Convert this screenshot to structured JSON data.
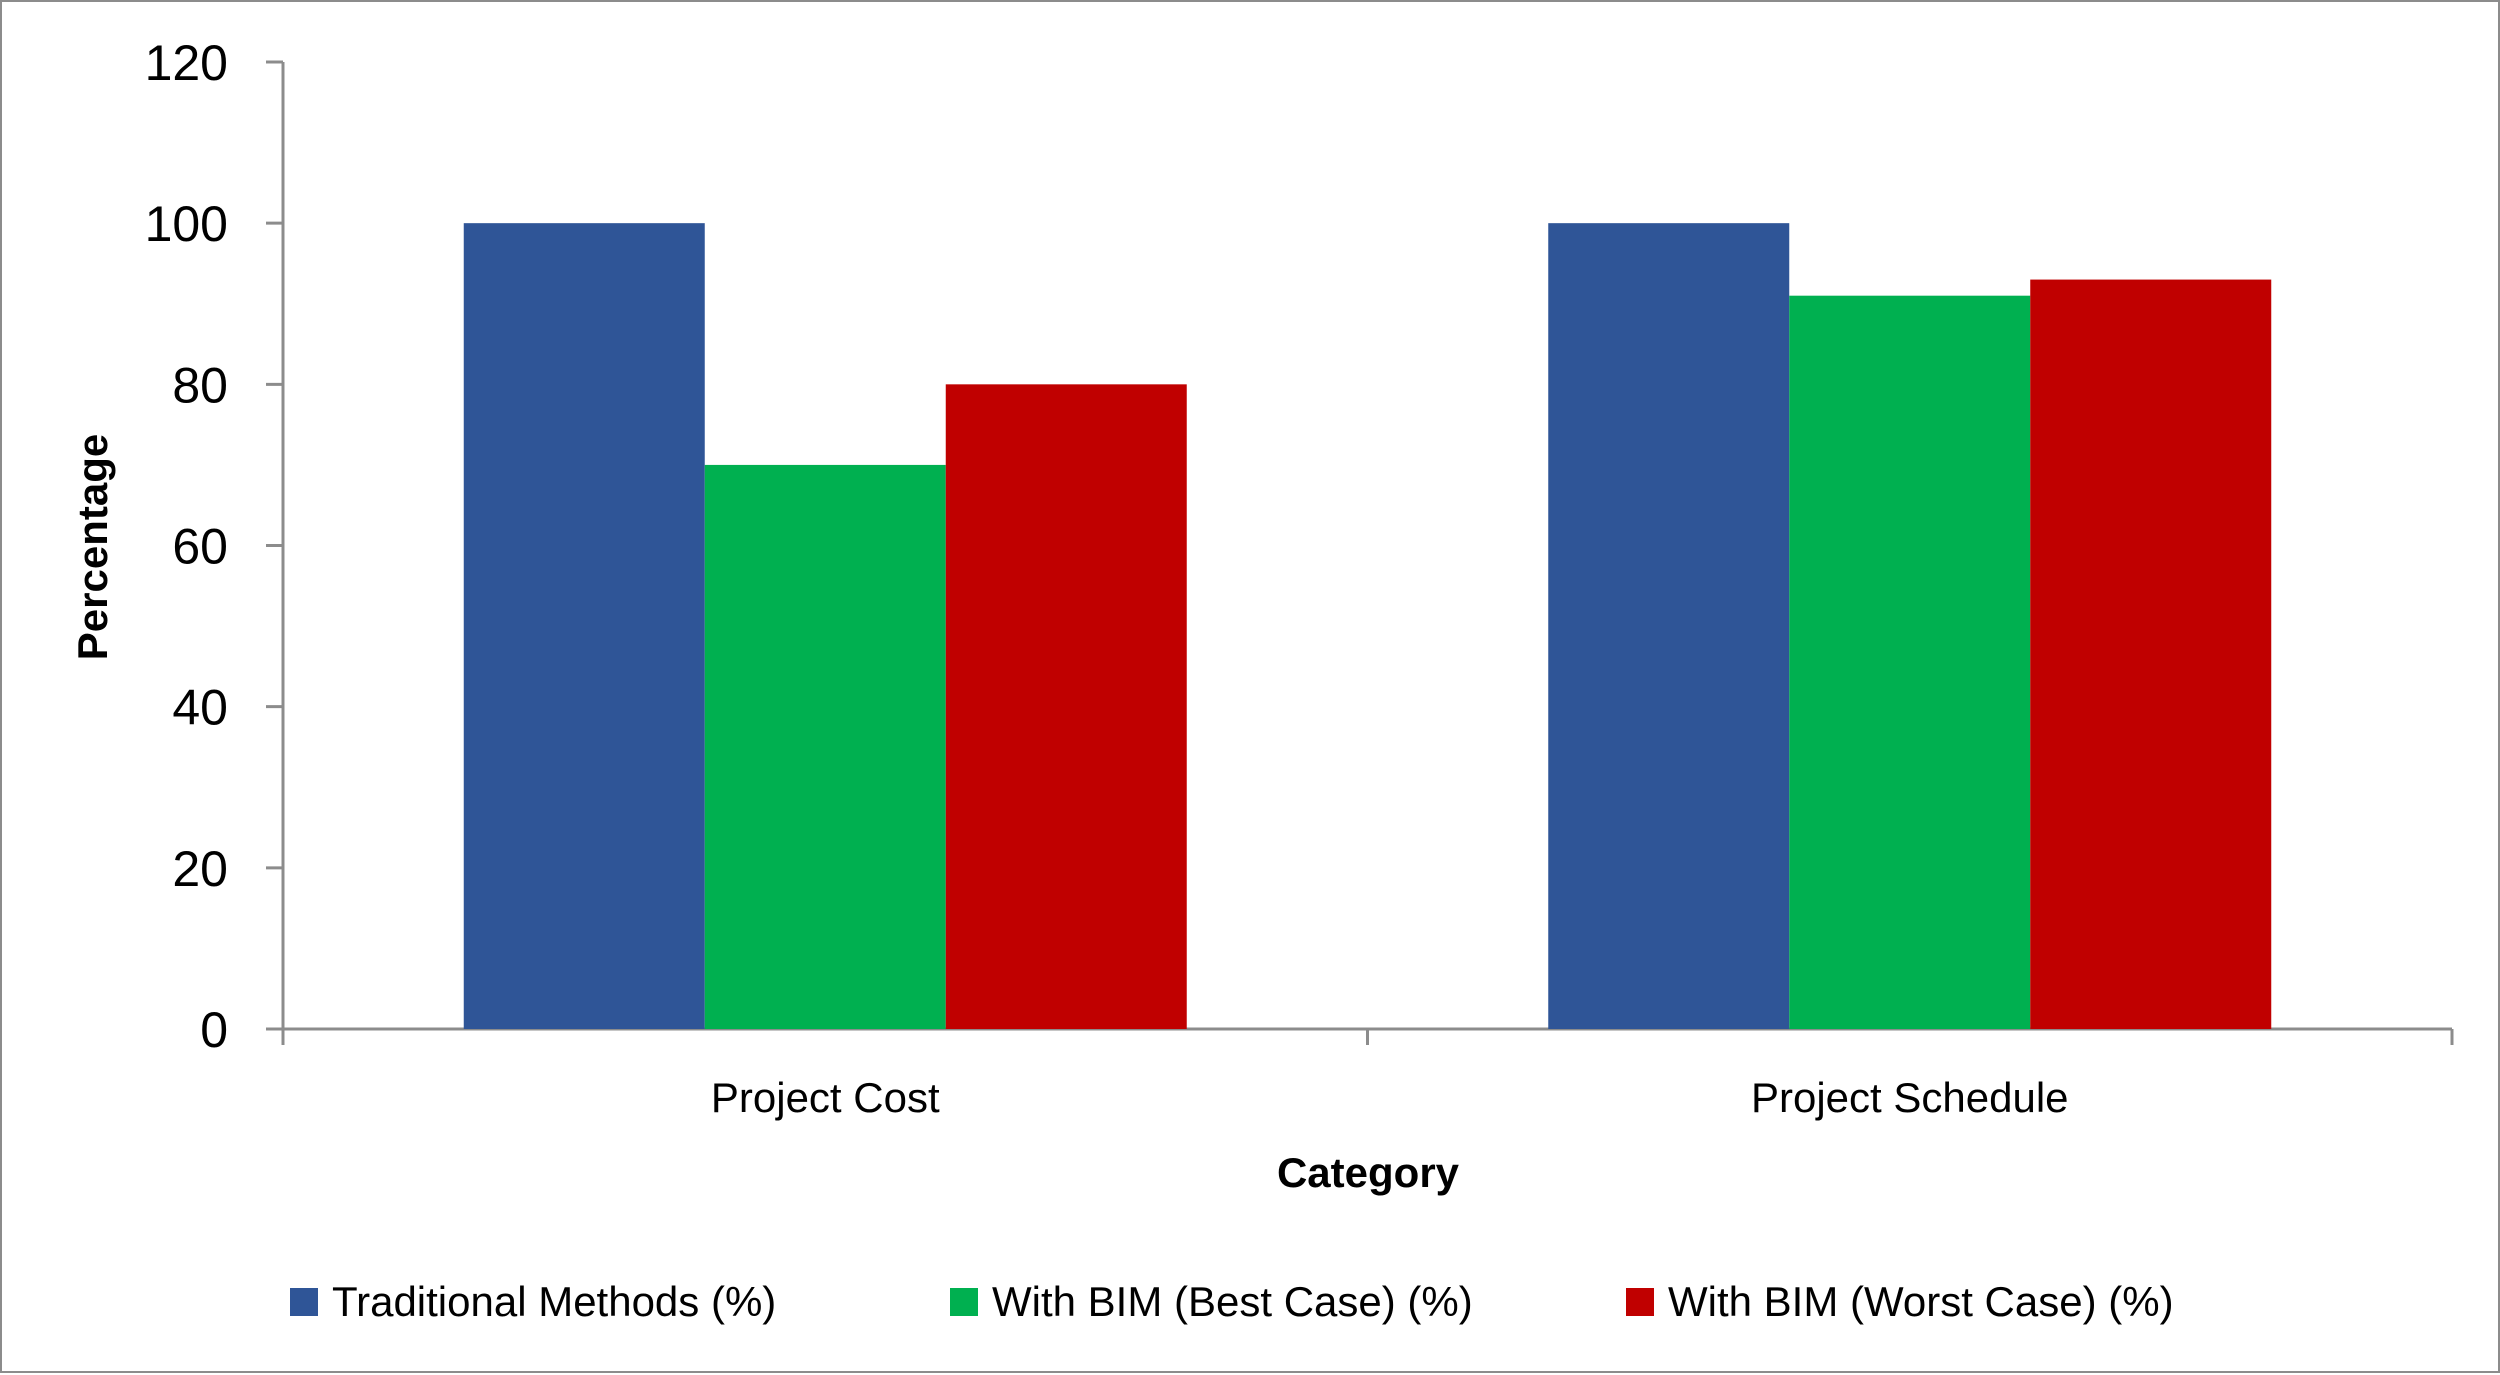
{
  "chart_data": {
    "type": "bar",
    "title": "",
    "xlabel": "Category",
    "ylabel": "Percentage",
    "categories": [
      "Project Cost",
      "Project Schedule"
    ],
    "series": [
      {
        "name": "Traditional Methods (%)",
        "color": "#2F5597",
        "values": [
          100,
          100
        ]
      },
      {
        "name": "With BIM (Best Case) (%)",
        "color": "#00B050",
        "values": [
          70,
          91
        ]
      },
      {
        "name": "With BIM (Worst Case) (%)",
        "color": "#C00000",
        "values": [
          80,
          93
        ]
      }
    ],
    "ylim": [
      0,
      120
    ],
    "yticks": [
      0,
      20,
      40,
      60,
      80,
      100,
      120
    ],
    "grid": false,
    "legend": "bottom"
  }
}
